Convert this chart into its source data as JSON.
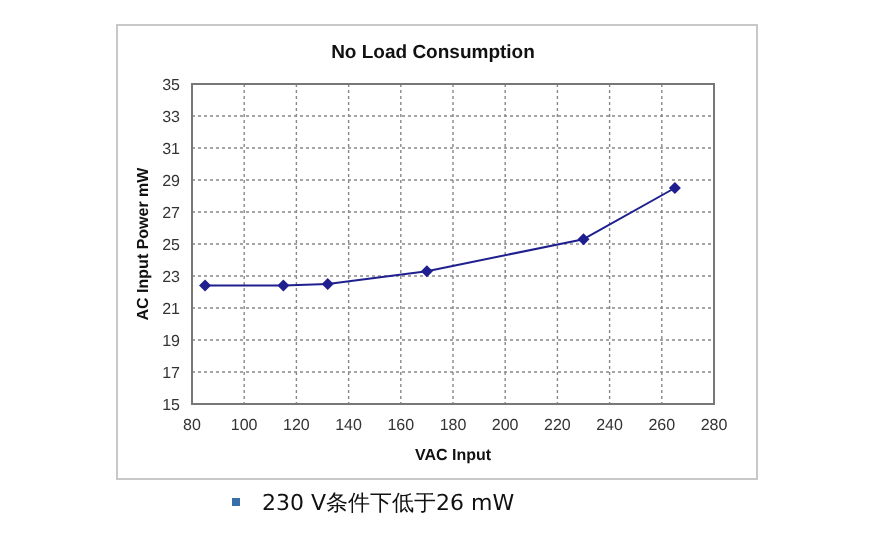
{
  "chart_data": {
    "type": "line",
    "title": "No Load Consumption",
    "xlabel": "VAC Input",
    "ylabel": "AC Input Power mW",
    "x": [
      85,
      115,
      132,
      170,
      230,
      265
    ],
    "series": [
      {
        "color": "#1f1f8f",
        "values": [
          22.4,
          22.4,
          22.5,
          23.3,
          25.3,
          28.5
        ]
      }
    ],
    "xlim": [
      80,
      280
    ],
    "xticks": [
      80,
      100,
      120,
      140,
      160,
      180,
      200,
      220,
      240,
      260,
      280
    ],
    "ylim": [
      15,
      35
    ],
    "yticks": [
      15,
      17,
      19,
      21,
      23,
      25,
      27,
      29,
      31,
      33,
      35
    ],
    "grid": true,
    "marker": "diamond",
    "line_style": "solid",
    "annotations": [
      "230 V条件下低于26 mW"
    ]
  }
}
